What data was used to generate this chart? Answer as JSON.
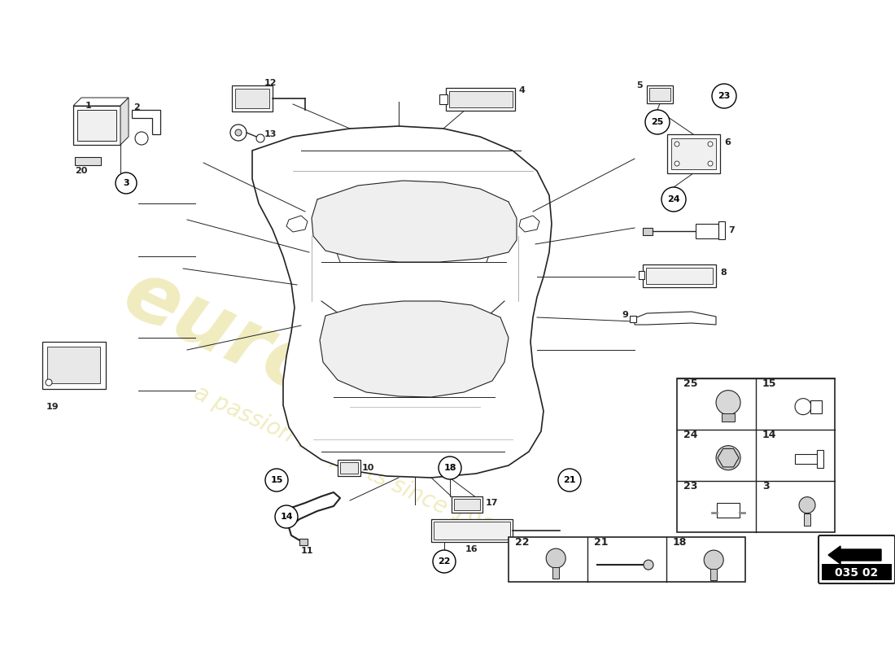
{
  "background_color": "#ffffff",
  "watermark_color": "#d4c84a",
  "watermark_alpha": 0.35,
  "diagram_number": "035 02",
  "line_color": "#222222"
}
